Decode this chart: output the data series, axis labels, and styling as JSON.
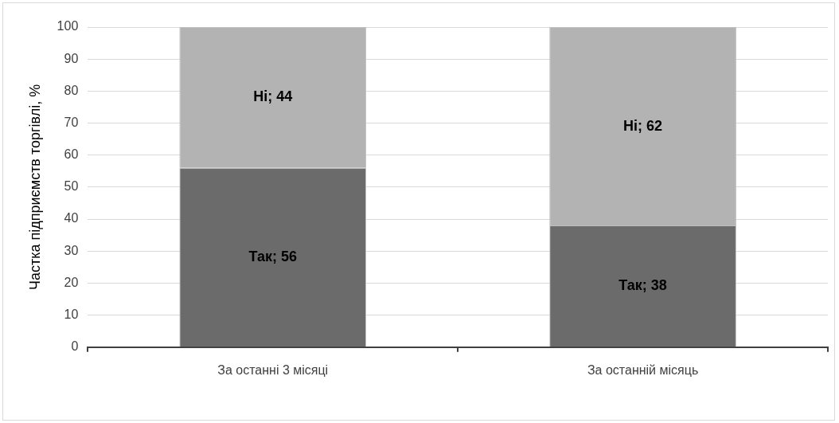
{
  "chart_data": {
    "type": "bar",
    "stacked": true,
    "ylabel": "Частка підприємств торгівлі, %",
    "categories": [
      "За останні 3 місяці",
      "За останній місяць"
    ],
    "series": [
      {
        "color": "#6b6b6b",
        "values": [
          56,
          38
        ],
        "value_labels": [
          "Так; 56",
          "Так; 38"
        ]
      },
      {
        "color": "#b3b3b3",
        "values": [
          44,
          62
        ],
        "value_labels": [
          "Ні; 44",
          "Ні; 62"
        ]
      }
    ],
    "ylim": [
      0,
      100
    ],
    "yticks": [
      0,
      10,
      20,
      30,
      40,
      50,
      60,
      70,
      80,
      90,
      100
    ],
    "grid": "y",
    "legend": false
  }
}
